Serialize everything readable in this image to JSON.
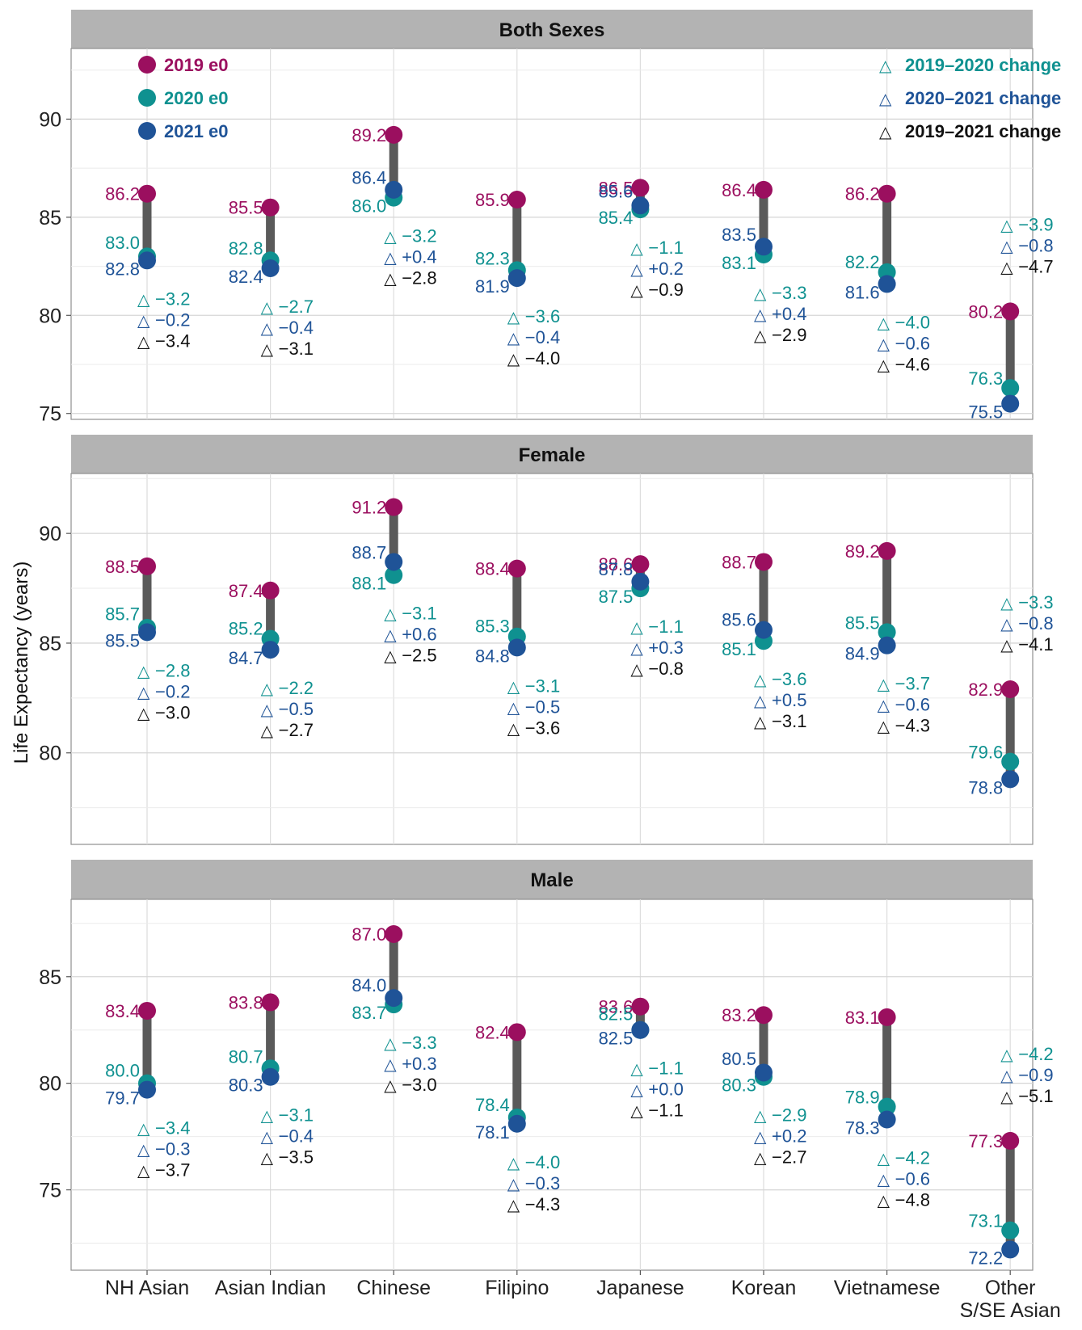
{
  "colors": {
    "y2019": "#9b0f5f",
    "y2020": "#0f9190",
    "y2021": "#1f5397",
    "delta1920": "#0f9190",
    "delta2021": "#1f5397",
    "delta1921": "#111111",
    "segment": "#5a5a5a",
    "strip_bg": "#b3b3b3",
    "grid": "#dddddd"
  },
  "legend": {
    "e0": [
      {
        "key": "y2019",
        "label": "2019 e0"
      },
      {
        "key": "y2020",
        "label": "2020 e0"
      },
      {
        "key": "y2021",
        "label": "2021 e0"
      }
    ],
    "change": [
      {
        "key": "delta1920",
        "label": "2019–2020 change"
      },
      {
        "key": "delta2021",
        "label": "2020–2021 change"
      },
      {
        "key": "delta1921",
        "label": "2019–2021 change"
      }
    ]
  },
  "chart_data": {
    "type": "dumbbell",
    "ylabel": "Life Expectancy (years)",
    "categories": [
      "NH Asian",
      "Asian Indian",
      "Chinese",
      "Filipino",
      "Japanese",
      "Korean",
      "Vietnamese",
      "Other S/SE Asian"
    ],
    "category_lines": [
      [
        "NH Asian"
      ],
      [
        "Asian Indian"
      ],
      [
        "Chinese"
      ],
      [
        "Filipino"
      ],
      [
        "Japanese"
      ],
      [
        "Korean"
      ],
      [
        "Vietnamese"
      ],
      [
        "Other",
        "S/SE Asian"
      ]
    ],
    "delta_symbol": "△",
    "grid": true,
    "legend_position": "top (inside Both Sexes panel)",
    "panels": [
      {
        "title": "Both Sexes",
        "ylim": [
          74.7,
          93.6
        ],
        "yticks": [
          75,
          80,
          85,
          90
        ],
        "e0_2019": [
          86.2,
          85.5,
          89.2,
          85.9,
          86.5,
          86.4,
          86.2,
          80.2
        ],
        "e0_2020": [
          83.0,
          82.8,
          86.0,
          82.3,
          85.4,
          83.1,
          82.2,
          76.3
        ],
        "e0_2021": [
          82.8,
          82.4,
          86.4,
          81.9,
          85.6,
          83.5,
          81.6,
          75.5
        ],
        "change_2019_2020": [
          "−3.2",
          "−2.7",
          "−3.2",
          "−3.6",
          "−1.1",
          "−3.3",
          "−4.0",
          "−3.9"
        ],
        "change_2020_2021": [
          "−0.2",
          "−0.4",
          "+0.4",
          "−0.4",
          "+0.2",
          "+0.4",
          "−0.6",
          "−0.8"
        ],
        "change_2019_2021": [
          "−3.4",
          "−3.1",
          "−2.8",
          "−4.0",
          "−0.9",
          "−2.9",
          "−4.6",
          "−4.7"
        ]
      },
      {
        "title": "Female",
        "ylim": [
          75.83,
          92.73
        ],
        "yticks": [
          80,
          85,
          90
        ],
        "e0_2019": [
          88.5,
          87.4,
          91.2,
          88.4,
          88.6,
          88.7,
          89.2,
          82.9
        ],
        "e0_2020": [
          85.7,
          85.2,
          88.1,
          85.3,
          87.5,
          85.1,
          85.5,
          79.6
        ],
        "e0_2021": [
          85.5,
          84.7,
          88.7,
          84.8,
          87.8,
          85.6,
          84.9,
          78.8
        ],
        "change_2019_2020": [
          "−2.8",
          "−2.2",
          "−3.1",
          "−3.1",
          "−1.1",
          "−3.6",
          "−3.7",
          "−3.3"
        ],
        "change_2020_2021": [
          "−0.2",
          "−0.5",
          "+0.6",
          "−0.5",
          "+0.3",
          "+0.5",
          "−0.6",
          "−0.8"
        ],
        "change_2019_2021": [
          "−3.0",
          "−2.7",
          "−2.5",
          "−3.6",
          "−0.8",
          "−3.1",
          "−4.3",
          "−4.1"
        ]
      },
      {
        "title": "Male",
        "ylim": [
          71.23,
          88.63
        ],
        "yticks": [
          75,
          80,
          85
        ],
        "e0_2019": [
          83.4,
          83.8,
          87.0,
          82.4,
          83.6,
          83.2,
          83.1,
          77.3
        ],
        "e0_2020": [
          80.0,
          80.7,
          83.7,
          78.4,
          82.5,
          80.3,
          78.9,
          73.1
        ],
        "e0_2021": [
          79.7,
          80.3,
          84.0,
          78.1,
          82.5,
          80.5,
          78.3,
          72.2
        ],
        "change_2019_2020": [
          "−3.4",
          "−3.1",
          "−3.3",
          "−4.0",
          "−1.1",
          "−2.9",
          "−4.2",
          "−4.2"
        ],
        "change_2020_2021": [
          "−0.3",
          "−0.4",
          "+0.3",
          "−0.3",
          "+0.0",
          "+0.2",
          "−0.6",
          "−0.9"
        ],
        "change_2019_2021": [
          "−3.7",
          "−3.5",
          "−3.0",
          "−4.3",
          "−1.1",
          "−2.7",
          "−4.8",
          "−5.1"
        ]
      }
    ]
  }
}
